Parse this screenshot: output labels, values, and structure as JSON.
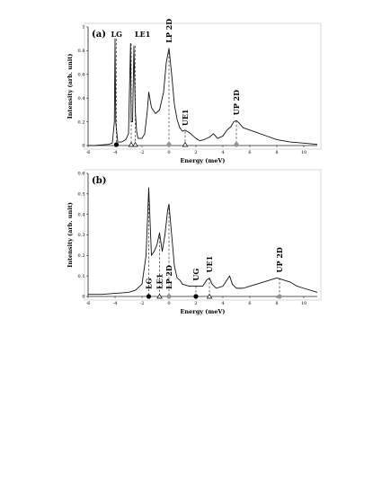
{
  "chart_data": [
    {
      "type": "line",
      "panel_label": "(a)",
      "xlabel": "Energy (meV)",
      "ylabel": "Intensity (arb. unit)",
      "xlim": [
        -6,
        11
      ],
      "ylim": [
        0,
        1
      ],
      "x_ticks": [
        -6,
        -4,
        -2,
        0,
        2,
        4,
        6,
        8,
        10
      ],
      "y_ticks": [
        0,
        0.2,
        0.4,
        0.6,
        0.8,
        1
      ],
      "y_tick_labels": [
        "0",
        "0.2",
        "0.4",
        "0.6",
        "0.8",
        "1"
      ],
      "grid": false,
      "series": [
        {
          "x": [
            -6.0,
            -5.5,
            -5.0,
            -4.5,
            -4.2,
            -4.05,
            -4.0,
            -3.95,
            -3.8,
            -3.5,
            -3.2,
            -3.0,
            -2.85,
            -2.8,
            -2.7,
            -2.6,
            -2.5,
            -2.4,
            -2.3,
            -2.0,
            -1.8,
            -1.6,
            -1.5,
            -1.3,
            -1.0,
            -0.7,
            -0.4,
            -0.2,
            0.0,
            0.2,
            0.4,
            0.6,
            0.8,
            1.0,
            1.2,
            1.5,
            1.8,
            2.0,
            2.3,
            2.6,
            3.0,
            3.3,
            3.6,
            4.0,
            4.3,
            4.6,
            4.8,
            5.0,
            5.2,
            5.5,
            6.0,
            6.5,
            7.0,
            7.5,
            8.0,
            9.0,
            10.0,
            11.0
          ],
          "y": [
            0.0,
            0.0,
            0.005,
            0.01,
            0.02,
            0.2,
            0.9,
            0.2,
            0.03,
            0.03,
            0.05,
            0.1,
            0.86,
            0.2,
            0.2,
            0.84,
            0.3,
            0.12,
            0.06,
            0.06,
            0.1,
            0.3,
            0.45,
            0.32,
            0.27,
            0.3,
            0.45,
            0.7,
            0.82,
            0.6,
            0.35,
            0.22,
            0.15,
            0.12,
            0.13,
            0.11,
            0.08,
            0.06,
            0.04,
            0.05,
            0.07,
            0.1,
            0.06,
            0.08,
            0.13,
            0.16,
            0.2,
            0.21,
            0.19,
            0.15,
            0.13,
            0.11,
            0.09,
            0.07,
            0.05,
            0.03,
            0.02,
            0.01
          ]
        }
      ],
      "peaks": [
        {
          "label": "LG",
          "x": -3.9,
          "y": 0.9,
          "marker": "filled-circle"
        },
        {
          "label": "LE1",
          "x": -2.8,
          "y": 0.86,
          "marker": "open-triangle"
        },
        {
          "label": "",
          "x": -2.5,
          "y": 0.84,
          "marker": "open-triangle"
        },
        {
          "label": "LP 2D",
          "x": 0.0,
          "y": 0.82,
          "marker": "gray-dot"
        },
        {
          "label": "UE1",
          "x": 1.2,
          "y": 0.12,
          "marker": "open-triangle"
        },
        {
          "label": "UP 2D",
          "x": 5.0,
          "y": 0.21,
          "marker": "gray-dot"
        }
      ]
    },
    {
      "type": "line",
      "panel_label": "(b)",
      "xlabel": "Energy (meV)",
      "ylabel": "Intensity (arb. unit)",
      "xlim": [
        -6,
        11
      ],
      "ylim": [
        0,
        0.6
      ],
      "x_ticks": [
        -6,
        -4,
        -2,
        0,
        2,
        4,
        6,
        8,
        10
      ],
      "y_ticks": [
        0,
        0.1,
        0.2,
        0.3,
        0.4,
        0.5,
        0.6
      ],
      "y_tick_labels": [
        "0",
        "0.1",
        "0.2",
        "0.3",
        "0.4",
        "0.5",
        "0.6"
      ],
      "grid": false,
      "series": [
        {
          "x": [
            -6.0,
            -5.0,
            -4.0,
            -3.0,
            -2.5,
            -2.0,
            -1.7,
            -1.5,
            -1.3,
            -1.1,
            -0.9,
            -0.7,
            -0.5,
            -0.3,
            -0.1,
            0.0,
            0.2,
            0.4,
            0.6,
            0.8,
            1.0,
            1.5,
            2.0,
            2.5,
            2.8,
            3.0,
            3.2,
            3.5,
            4.0,
            4.3,
            4.5,
            4.7,
            5.0,
            5.5,
            6.0,
            6.5,
            7.0,
            7.5,
            8.0,
            8.5,
            9.0,
            9.5,
            10.0,
            11.0
          ],
          "y": [
            0.01,
            0.01,
            0.015,
            0.02,
            0.03,
            0.06,
            0.2,
            0.53,
            0.2,
            0.22,
            0.25,
            0.31,
            0.22,
            0.3,
            0.42,
            0.45,
            0.3,
            0.15,
            0.09,
            0.08,
            0.06,
            0.05,
            0.05,
            0.05,
            0.08,
            0.09,
            0.06,
            0.04,
            0.05,
            0.08,
            0.1,
            0.06,
            0.04,
            0.04,
            0.05,
            0.06,
            0.07,
            0.08,
            0.09,
            0.08,
            0.07,
            0.05,
            0.04,
            0.02
          ]
        }
      ],
      "peaks": [
        {
          "label": "LG",
          "x": -1.5,
          "y": 0.53,
          "marker": "filled-circle"
        },
        {
          "label": "LE1",
          "x": -0.7,
          "y": 0.31,
          "marker": "open-triangle"
        },
        {
          "label": "LP 2D",
          "x": 0.0,
          "y": 0.45,
          "marker": "gray-dot"
        },
        {
          "label": "UG",
          "x": 2.0,
          "y": 0.05,
          "marker": "filled-circle"
        },
        {
          "label": "UE1",
          "x": 3.0,
          "y": 0.09,
          "marker": "open-triangle"
        },
        {
          "label": "UP 2D",
          "x": 8.2,
          "y": 0.09,
          "marker": "gray-dot"
        }
      ]
    }
  ],
  "colors": {
    "line": "#111111",
    "frame": "#222222",
    "panel_border": "#d0d0d0",
    "gray_marker": "#8c9a9a"
  }
}
